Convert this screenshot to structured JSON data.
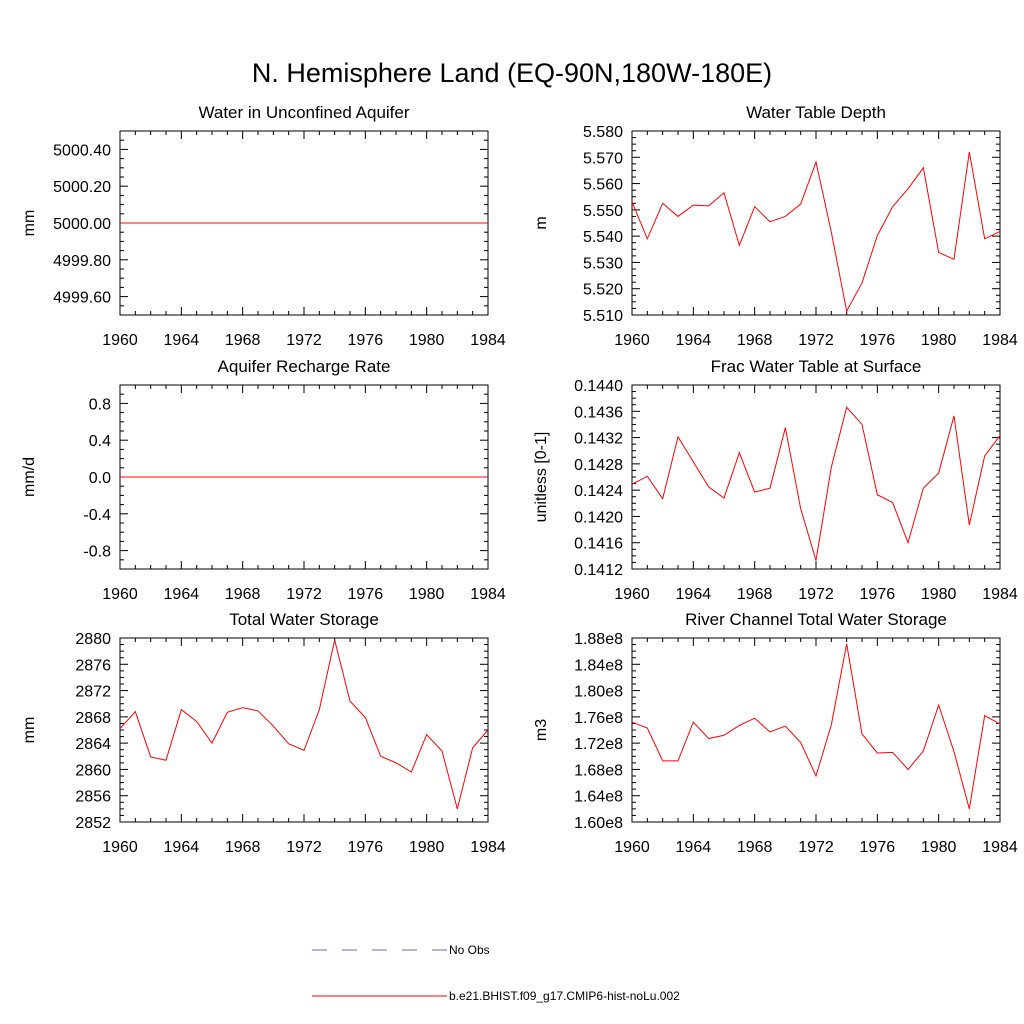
{
  "title": "N. Hemisphere Land (EQ-90N,180W-180E)",
  "legend": {
    "items": [
      {
        "label": "No Obs",
        "color": "#6b6bb5",
        "dashed": true
      },
      {
        "label": "b.e21.BHIST.f09_g17.CMIP6-hist-noLu.002",
        "color": "#ff0000",
        "dashed": false
      }
    ]
  },
  "chart_data": [
    {
      "type": "line",
      "title": "Water in Unconfined Aquifer",
      "xlabel": "",
      "ylabel": "mm",
      "xlim": [
        1960,
        1984
      ],
      "ylim": [
        4999.5,
        5000.5
      ],
      "xticks": [
        1960,
        1964,
        1968,
        1972,
        1976,
        1980,
        1984
      ],
      "yticks": [
        4999.6,
        4999.8,
        5000.0,
        5000.2,
        5000.4
      ],
      "ytick_labels": [
        "4999.60",
        "4999.80",
        "5000.00",
        "5000.20",
        "5000.40"
      ],
      "series": [
        {
          "color": "#ff0000",
          "x": [
            1960,
            1961,
            1962,
            1963,
            1964,
            1965,
            1966,
            1967,
            1968,
            1969,
            1970,
            1971,
            1972,
            1973,
            1974,
            1975,
            1976,
            1977,
            1978,
            1979,
            1980,
            1981,
            1982,
            1983,
            1984
          ],
          "y": [
            5000.0,
            5000.0,
            5000.0,
            5000.0,
            5000.0,
            5000.0,
            5000.0,
            5000.0,
            5000.0,
            5000.0,
            5000.0,
            5000.0,
            5000.0,
            5000.0,
            5000.0,
            5000.0,
            5000.0,
            5000.0,
            5000.0,
            5000.0,
            5000.0,
            5000.0,
            5000.0,
            5000.0,
            5000.0
          ]
        }
      ]
    },
    {
      "type": "line",
      "title": "Water Table Depth",
      "xlabel": "",
      "ylabel": "m",
      "xlim": [
        1960,
        1984
      ],
      "ylim": [
        5.51,
        5.58
      ],
      "xticks": [
        1960,
        1964,
        1968,
        1972,
        1976,
        1980,
        1984
      ],
      "yticks": [
        5.51,
        5.52,
        5.53,
        5.54,
        5.55,
        5.56,
        5.57,
        5.58
      ],
      "ytick_labels": [
        "5.510",
        "5.520",
        "5.530",
        "5.540",
        "5.550",
        "5.560",
        "5.570",
        "5.580"
      ],
      "series": [
        {
          "color": "#ff0000",
          "x": [
            1960,
            1961,
            1962,
            1963,
            1964,
            1965,
            1966,
            1967,
            1968,
            1969,
            1970,
            1971,
            1972,
            1973,
            1974,
            1975,
            1976,
            1977,
            1978,
            1979,
            1980,
            1981,
            1982,
            1983,
            1984
          ],
          "y": [
            5.553,
            5.539,
            5.5525,
            5.5475,
            5.5518,
            5.5515,
            5.5565,
            5.5365,
            5.5512,
            5.5455,
            5.5475,
            5.5522,
            5.5682,
            5.5415,
            5.5115,
            5.5222,
            5.5402,
            5.5512,
            5.558,
            5.566,
            5.5338,
            5.5312,
            5.572,
            5.539,
            5.5418
          ]
        }
      ]
    },
    {
      "type": "line",
      "title": "Aquifer Recharge Rate",
      "xlabel": "",
      "ylabel": "mm/d",
      "xlim": [
        1960,
        1984
      ],
      "ylim": [
        -1.0,
        1.0
      ],
      "xticks": [
        1960,
        1964,
        1968,
        1972,
        1976,
        1980,
        1984
      ],
      "yticks": [
        -0.8,
        -0.4,
        0.0,
        0.4,
        0.8
      ],
      "ytick_labels": [
        "-0.8",
        "-0.4",
        "0.0",
        "0.4",
        "0.8"
      ],
      "series": [
        {
          "color": "#ff0000",
          "x": [
            1960,
            1961,
            1962,
            1963,
            1964,
            1965,
            1966,
            1967,
            1968,
            1969,
            1970,
            1971,
            1972,
            1973,
            1974,
            1975,
            1976,
            1977,
            1978,
            1979,
            1980,
            1981,
            1982,
            1983,
            1984
          ],
          "y": [
            0,
            0,
            0,
            0,
            0,
            0,
            0,
            0,
            0,
            0,
            0,
            0,
            0,
            0,
            0,
            0,
            0,
            0,
            0,
            0,
            0,
            0,
            0,
            0,
            0
          ]
        }
      ]
    },
    {
      "type": "line",
      "title": "Frac Water Table at Surface",
      "xlabel": "",
      "ylabel": "unitless [0-1]",
      "xlim": [
        1960,
        1984
      ],
      "ylim": [
        0.1412,
        0.144
      ],
      "xticks": [
        1960,
        1964,
        1968,
        1972,
        1976,
        1980,
        1984
      ],
      "yticks": [
        0.1412,
        0.1416,
        0.142,
        0.1424,
        0.1428,
        0.1432,
        0.1436,
        0.144
      ],
      "ytick_labels": [
        "0.1412",
        "0.1416",
        "0.1420",
        "0.1424",
        "0.1428",
        "0.1432",
        "0.1436",
        "0.1440"
      ],
      "series": [
        {
          "color": "#ff0000",
          "x": [
            1960,
            1961,
            1962,
            1963,
            1964,
            1965,
            1966,
            1967,
            1968,
            1969,
            1970,
            1971,
            1972,
            1973,
            1974,
            1975,
            1976,
            1977,
            1978,
            1979,
            1980,
            1981,
            1982,
            1983,
            1984
          ],
          "y": [
            0.14249,
            0.14261,
            0.14227,
            0.14321,
            0.14283,
            0.14245,
            0.14228,
            0.14297,
            0.14237,
            0.14243,
            0.14335,
            0.14212,
            0.14133,
            0.14275,
            0.14366,
            0.1434,
            0.14233,
            0.14221,
            0.1416,
            0.14243,
            0.14266,
            0.14353,
            0.14187,
            0.14292,
            0.14323
          ]
        }
      ]
    },
    {
      "type": "line",
      "title": "Total Water Storage",
      "xlabel": "",
      "ylabel": "mm",
      "xlim": [
        1960,
        1984
      ],
      "ylim": [
        2852,
        2880
      ],
      "xticks": [
        1960,
        1964,
        1968,
        1972,
        1976,
        1980,
        1984
      ],
      "yticks": [
        2852,
        2856,
        2860,
        2864,
        2868,
        2872,
        2876,
        2880
      ],
      "ytick_labels": [
        "2852",
        "2856",
        "2860",
        "2864",
        "2868",
        "2872",
        "2876",
        "2880"
      ],
      "series": [
        {
          "color": "#ff0000",
          "x": [
            1960,
            1961,
            1962,
            1963,
            1964,
            1965,
            1966,
            1967,
            1968,
            1969,
            1970,
            1971,
            1972,
            1973,
            1974,
            1975,
            1976,
            1977,
            1978,
            1979,
            1980,
            1981,
            1982,
            1983,
            1984
          ],
          "y": [
            2866.2,
            2868.8,
            2861.9,
            2861.4,
            2869.1,
            2867.3,
            2864.0,
            2868.7,
            2869.4,
            2868.9,
            2866.6,
            2863.9,
            2862.9,
            2869.1,
            2879.7,
            2870.4,
            2867.9,
            2862.0,
            2861.0,
            2859.6,
            2865.3,
            2862.8,
            2854.0,
            2863.3,
            2866.0
          ]
        }
      ]
    },
    {
      "type": "line",
      "title": "River Channel Total Water Storage",
      "xlabel": "",
      "ylabel": "m3",
      "xlim": [
        1960,
        1984
      ],
      "ylim": [
        160000000.0,
        188000000.0
      ],
      "xticks": [
        1960,
        1964,
        1968,
        1972,
        1976,
        1980,
        1984
      ],
      "yticks": [
        160000000.0,
        164000000.0,
        168000000.0,
        172000000.0,
        176000000.0,
        180000000.0,
        184000000.0,
        188000000.0
      ],
      "ytick_labels": [
        "1.60e8",
        "1.64e8",
        "1.68e8",
        "1.72e8",
        "1.76e8",
        "1.80e8",
        "1.84e8",
        "1.88e8"
      ],
      "series": [
        {
          "color": "#ff0000",
          "x": [
            1960,
            1961,
            1962,
            1963,
            1964,
            1965,
            1966,
            1967,
            1968,
            1969,
            1970,
            1971,
            1972,
            1973,
            1974,
            1975,
            1976,
            1977,
            1978,
            1979,
            1980,
            1981,
            1982,
            1983,
            1984
          ],
          "y": [
            175200000.0,
            174300000.0,
            169300000.0,
            169300000.0,
            175200000.0,
            172700000.0,
            173200000.0,
            174700000.0,
            175800000.0,
            173700000.0,
            174600000.0,
            172100000.0,
            167000000.0,
            174800000.0,
            187100000.0,
            173400000.0,
            170500000.0,
            170600000.0,
            168000000.0,
            170800000.0,
            177800000.0,
            170700000.0,
            162000000.0,
            176200000.0,
            174900000.0
          ]
        }
      ]
    }
  ]
}
